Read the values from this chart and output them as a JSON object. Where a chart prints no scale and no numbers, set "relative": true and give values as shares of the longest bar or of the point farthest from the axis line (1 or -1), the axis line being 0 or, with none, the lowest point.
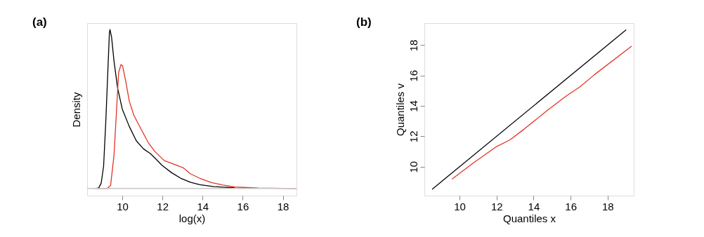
{
  "chart_data": [
    {
      "type": "line",
      "title": "(a)",
      "xlabel": "log(x)",
      "ylabel": "Density",
      "relative": true,
      "xlim": [
        8.25,
        18.68
      ],
      "xticks": [
        10,
        12,
        14,
        16,
        18
      ],
      "tick_labels": "x",
      "grid": false,
      "legend": false,
      "ref_lines": [
        {
          "axis": "y",
          "value": 0,
          "color": "#c8c8c8"
        }
      ],
      "series": [
        {
          "color": "#000000",
          "x": [
            8.66,
            8.83,
            8.95,
            9.07,
            9.18,
            9.28,
            9.36,
            9.39,
            9.47,
            9.59,
            9.77,
            10.0,
            10.35,
            10.7,
            11.05,
            11.4,
            11.64,
            11.99,
            12.45,
            12.92,
            13.39,
            13.86,
            14.56,
            15.61
          ],
          "values": [
            0,
            0.004,
            0.034,
            0.138,
            0.42,
            0.73,
            0.98,
            1.0,
            0.95,
            0.8,
            0.63,
            0.5,
            0.39,
            0.3,
            0.25,
            0.22,
            0.19,
            0.145,
            0.1,
            0.064,
            0.039,
            0.024,
            0.012,
            0.004
          ]
        },
        {
          "color": "#e53424",
          "x": [
            8.77,
            9.24,
            9.42,
            9.59,
            9.71,
            9.82,
            9.94,
            10.02,
            10.18,
            10.35,
            10.58,
            10.93,
            11.29,
            11.64,
            12.1,
            12.57,
            13.04,
            13.39,
            13.86,
            14.44,
            15.02,
            15.61,
            16.78,
            18.68
          ],
          "values": [
            0,
            0,
            0.019,
            0.21,
            0.48,
            0.73,
            0.78,
            0.77,
            0.67,
            0.55,
            0.46,
            0.375,
            0.29,
            0.23,
            0.175,
            0.153,
            0.13,
            0.093,
            0.064,
            0.037,
            0.022,
            0.009,
            0.003,
            0
          ]
        }
      ]
    },
    {
      "type": "line",
      "title": "(b)",
      "xlabel": "Quantiles x",
      "ylabel": "Quantiles v",
      "xlim": [
        8.1,
        19.41
      ],
      "xticks": [
        10,
        12,
        14,
        16,
        18
      ],
      "ylim": [
        8.09,
        19.45
      ],
      "yticks": [
        10,
        12,
        14,
        16,
        18
      ],
      "grid": false,
      "legend": false,
      "series": [
        {
          "color": "#000000",
          "x": [
            8.52,
            19.0
          ],
          "values": [
            8.51,
            19.01
          ]
        },
        {
          "color": "#e53424",
          "x": [
            9.59,
            9.94,
            10.7,
            11.96,
            12.72,
            13.48,
            14.75,
            15.76,
            16.52,
            17.28,
            19.3
          ],
          "values": [
            9.18,
            9.5,
            10.2,
            11.29,
            11.76,
            12.46,
            13.71,
            14.65,
            15.27,
            16.05,
            17.94
          ]
        }
      ]
    }
  ]
}
